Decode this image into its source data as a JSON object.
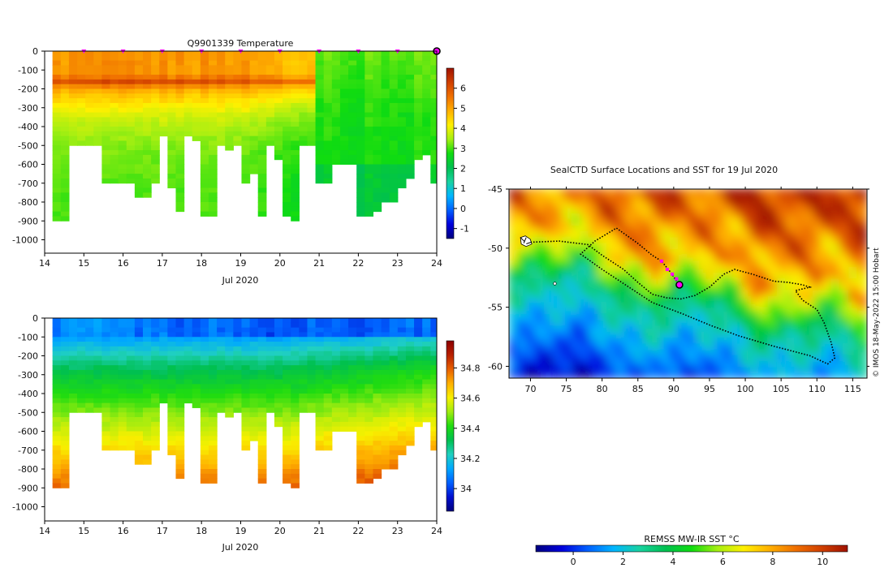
{
  "colors": {
    "temp_stops": [
      "#00007f",
      "#0000dc",
      "#0060ff",
      "#00b6ff",
      "#19d2a0",
      "#00c050",
      "#10dc10",
      "#a6ef12",
      "#fff000",
      "#ffb000",
      "#f07000",
      "#d04000",
      "#a01200"
    ],
    "sal_stops": [
      "#00007f",
      "#0010d0",
      "#0060ff",
      "#00a8ff",
      "#20d0c0",
      "#00c050",
      "#20dc10",
      "#a0ec10",
      "#f8f000",
      "#ffb000",
      "#e86000",
      "#b82000",
      "#8c0000"
    ],
    "marker": "#ff00ff",
    "track": "#000000"
  },
  "chart_data": [
    {
      "type": "heatmap",
      "title": "Q9901339  Temperature",
      "xlabel": "Jul 2020",
      "ylabel": "",
      "xlim": [
        14,
        24
      ],
      "ylim": [
        -1100,
        0
      ],
      "x_ticks": [
        "14",
        "15",
        "16",
        "17",
        "18",
        "19",
        "20",
        "21",
        "22",
        "23",
        "24"
      ],
      "y_ticks": [
        "0",
        "-100",
        "-200",
        "-300",
        "-400",
        "-500",
        "-600",
        "-700",
        "-800",
        "-900",
        "-1000"
      ],
      "colorbar": {
        "range": [
          -1.5,
          7
        ],
        "ticks": [
          "-1",
          "0",
          "1",
          "2",
          "3",
          "4",
          "5",
          "6"
        ]
      },
      "profile_markers_x": [
        15,
        16,
        17,
        18,
        19,
        20,
        21,
        22,
        23,
        24
      ],
      "profile_max_depth": [
        -880,
        -890,
        -495,
        -495,
        -495,
        -500,
        -700,
        -700,
        -700,
        -700,
        -770,
        -770,
        -690,
        -450,
        -710,
        -840,
        -430,
        -470,
        -860,
        -855,
        -490,
        -525,
        -500,
        -700,
        -630,
        -855,
        -480,
        -560,
        -855,
        -880,
        -500,
        -500,
        -700,
        -700,
        -580,
        -580,
        -580,
        -860,
        -855,
        -840,
        -785,
        -785,
        -715,
        -675,
        -560,
        -540,
        -700
      ]
    },
    {
      "type": "heatmap",
      "title": "",
      "xlabel": "Jul 2020",
      "ylabel": "",
      "xlim": [
        14,
        24
      ],
      "ylim": [
        -1100,
        0
      ],
      "x_ticks": [
        "14",
        "15",
        "16",
        "17",
        "18",
        "19",
        "20",
        "21",
        "22",
        "23",
        "24"
      ],
      "y_ticks": [
        "0",
        "-100",
        "-200",
        "-300",
        "-400",
        "-500",
        "-600",
        "-700",
        "-800",
        "-900",
        "-1000"
      ],
      "colorbar": {
        "range": [
          33.85,
          34.98
        ],
        "ticks": [
          "34",
          "34.2",
          "34.4",
          "34.6",
          "34.8"
        ]
      }
    },
    {
      "type": "map",
      "title": "SealCTD Surface Locations and SST for 19 Jul 2020",
      "xlim": [
        67,
        117
      ],
      "ylim": [
        -61,
        -45
      ],
      "x_ticks": [
        "70",
        "75",
        "80",
        "85",
        "90",
        "95",
        "100",
        "105",
        "110",
        "115"
      ],
      "y_ticks": [
        "-45",
        "-50",
        "-55",
        "-60"
      ],
      "current_position": [
        90.8,
        -53.1
      ],
      "recent_positions": [
        [
          88.3,
          -51.1
        ],
        [
          89.1,
          -51.8
        ],
        [
          89.8,
          -52.2
        ],
        [
          90.4,
          -52.6
        ]
      ],
      "colorbar": {
        "label": "REMSS MW-IR SST °C",
        "range": [
          -1.5,
          11
        ],
        "ticks": [
          "0",
          "2",
          "4",
          "6",
          "8",
          "10"
        ]
      }
    }
  ],
  "credit": "© IMOS 18-May-2022 15:00 Hobart"
}
